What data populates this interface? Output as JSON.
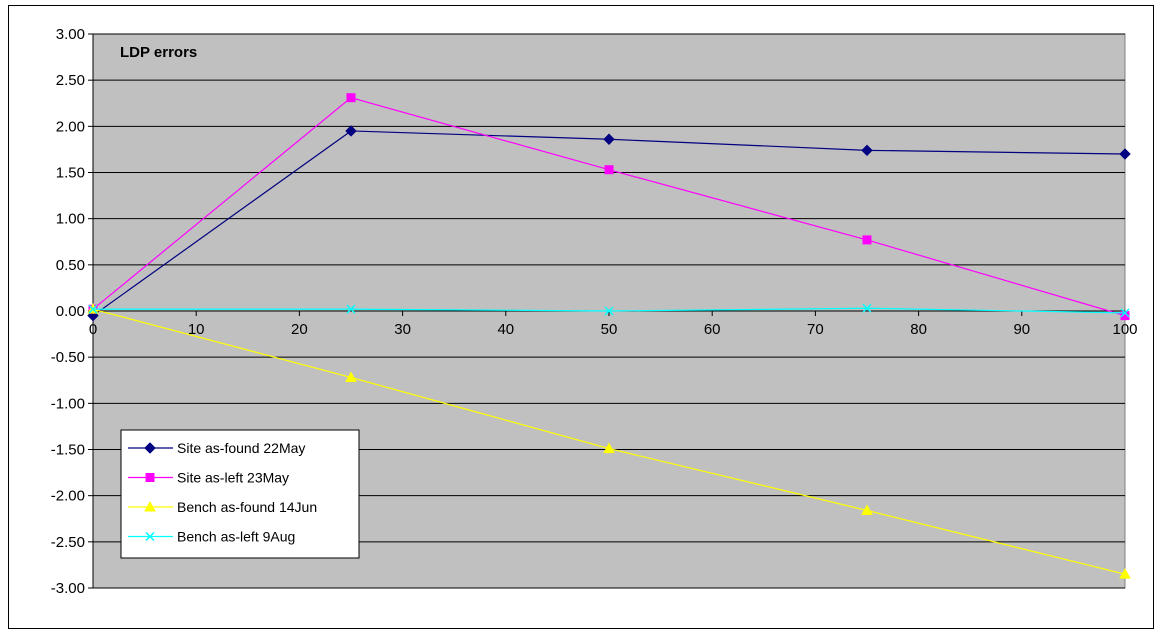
{
  "chart_data": {
    "type": "line",
    "title": "LDP errors",
    "x": [
      0,
      25,
      50,
      75,
      100
    ],
    "xlim": [
      0,
      100
    ],
    "xticks": [
      "0",
      "10",
      "20",
      "30",
      "40",
      "50",
      "60",
      "70",
      "80",
      "90",
      "100"
    ],
    "ylim": [
      -3.0,
      3.0
    ],
    "yticks": [
      "3.00",
      "2.50",
      "2.00",
      "1.50",
      "1.00",
      "0.50",
      "0.00",
      "-0.50",
      "-1.00",
      "-1.50",
      "-2.00",
      "-2.50",
      "-3.00"
    ],
    "grid": true,
    "legend_position": "bottom-left",
    "plot_background": "#c0c0c0",
    "series": [
      {
        "name": "Site as-found 22May",
        "color": "#000080",
        "marker": "diamond",
        "values": [
          -0.05,
          1.95,
          1.86,
          1.74,
          1.7
        ]
      },
      {
        "name": "Site as-left 23May",
        "color": "#ff00ff",
        "marker": "square",
        "values": [
          0.02,
          2.31,
          1.53,
          0.77,
          -0.05
        ]
      },
      {
        "name": "Bench as-found 14Jun",
        "color": "#ffff00",
        "marker": "triangle",
        "values": [
          0.02,
          -0.72,
          -1.49,
          -2.16,
          -2.85
        ]
      },
      {
        "name": "Bench as-left 9Aug",
        "color": "#00ffff",
        "marker": "x",
        "values": [
          0.02,
          0.02,
          0.0,
          0.03,
          -0.02
        ]
      }
    ]
  }
}
